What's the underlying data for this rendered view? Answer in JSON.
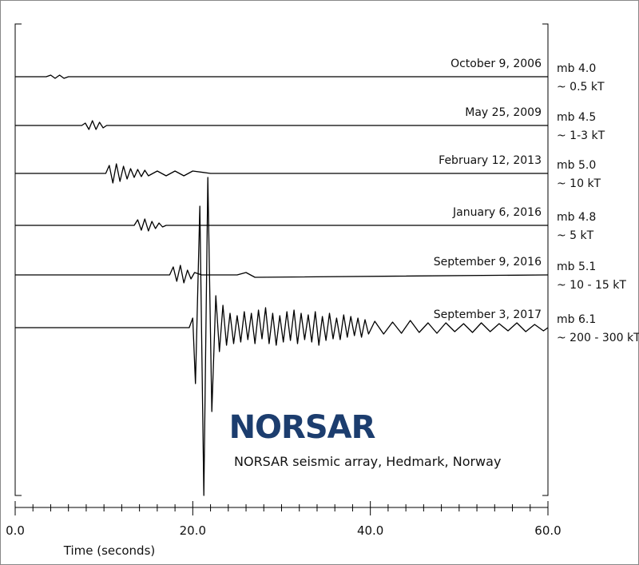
{
  "chart_data": {
    "type": "seismogram",
    "xlabel": "Time (seconds)",
    "xlim": [
      0,
      60
    ],
    "xticks": [
      {
        "value": 0,
        "label": "0.0"
      },
      {
        "value": 20,
        "label": "20.0"
      },
      {
        "value": 40,
        "label": "40.0"
      },
      {
        "value": 60,
        "label": "60.0"
      }
    ],
    "minor_xticks": [
      2,
      4,
      6,
      8,
      10,
      12,
      14,
      16,
      18,
      22,
      24,
      26,
      28,
      30,
      32,
      34,
      36,
      38,
      42,
      44,
      46,
      48,
      50,
      52,
      54,
      56,
      58
    ],
    "logo": "NORSAR",
    "caption": "NORSAR seismic array, Hedmark, Norway",
    "series": [
      {
        "name": "October 9, 2006",
        "magnitude": "mb 4.0",
        "yield": "~ 0.5 kT",
        "color": "#000000",
        "x": [
          0,
          3.5,
          4.0,
          4.5,
          5.0,
          5.5,
          6.0,
          10,
          60
        ],
        "values": [
          0,
          0,
          2,
          -2,
          2,
          -2,
          0,
          0,
          0
        ]
      },
      {
        "name": "May 25, 2009",
        "magnitude": "mb 4.5",
        "yield": "~ 1-3 kT",
        "color": "#000000",
        "x": [
          0,
          7.5,
          7.9,
          8.3,
          8.7,
          9.1,
          9.5,
          9.9,
          10.3,
          60
        ],
        "values": [
          0,
          0,
          3,
          -5,
          6,
          -5,
          4,
          -3,
          0,
          0
        ]
      },
      {
        "name": "February 12, 2013",
        "magnitude": "mb 5.0",
        "yield": "~ 10 kT",
        "color": "#000000",
        "x": [
          0,
          10.2,
          10.6,
          11.0,
          11.4,
          11.8,
          12.2,
          12.6,
          13.0,
          13.4,
          13.8,
          14.2,
          14.6,
          15.0,
          16,
          17,
          18,
          19,
          20,
          22,
          60
        ],
        "values": [
          0,
          0,
          10,
          -12,
          12,
          -10,
          9,
          -7,
          6,
          -5,
          5,
          -4,
          4,
          -3,
          3,
          -3,
          3,
          -3,
          3,
          0,
          0
        ]
      },
      {
        "name": "January 6, 2016",
        "magnitude": "mb 4.8",
        "yield": "~ 5 kT",
        "color": "#000000",
        "x": [
          0,
          13.4,
          13.8,
          14.2,
          14.6,
          15.0,
          15.4,
          15.8,
          16.2,
          16.6,
          17,
          60
        ],
        "values": [
          0,
          0,
          7,
          -6,
          8,
          -7,
          5,
          -4,
          3,
          -2,
          0,
          0
        ]
      },
      {
        "name": "September 9, 2016",
        "magnitude": "mb 5.1",
        "yield": "~ 10 - 15 kT",
        "color": "#000000",
        "x": [
          0,
          17.4,
          17.8,
          18.2,
          18.6,
          19.0,
          19.4,
          19.8,
          20.2,
          21,
          25,
          26,
          27,
          60
        ],
        "values": [
          0,
          0,
          10,
          -8,
          12,
          -10,
          6,
          -5,
          3,
          0,
          0,
          3,
          -3,
          0
        ]
      },
      {
        "name": "September 3, 2017",
        "magnitude": "mb 6.1",
        "yield": "~ 200 - 300 kT",
        "color": "#000000",
        "x": [
          0,
          19.6,
          20.0,
          20.3,
          20.8,
          21.25,
          21.7,
          22.15,
          22.6,
          23.0,
          23.4,
          23.8,
          24.2,
          24.6,
          25.0,
          25.4,
          25.8,
          26.2,
          26.6,
          27.0,
          27.4,
          27.8,
          28.2,
          28.6,
          29.0,
          29.4,
          29.8,
          30.2,
          30.6,
          31.0,
          31.4,
          31.8,
          32.2,
          32.6,
          33.0,
          33.4,
          33.8,
          34.2,
          34.6,
          35.0,
          35.4,
          35.8,
          36.2,
          36.6,
          37.0,
          37.4,
          37.8,
          38.2,
          38.6,
          39.0,
          39.4,
          39.8,
          40.5,
          41.5,
          42.5,
          43.5,
          44.5,
          45.5,
          46.5,
          47.5,
          48.5,
          49.5,
          50.5,
          51.5,
          52.5,
          53.5,
          54.5,
          55.5,
          56.5,
          57.5,
          58.5,
          59.5,
          60
        ],
        "values": [
          0,
          0,
          12,
          -70,
          152,
          -210,
          188,
          -105,
          40,
          -30,
          28,
          -22,
          18,
          -20,
          15,
          -18,
          20,
          -15,
          18,
          -20,
          22,
          -14,
          25,
          -20,
          18,
          -22,
          15,
          -18,
          20,
          -16,
          22,
          -20,
          18,
          -15,
          16,
          -18,
          20,
          -22,
          14,
          -16,
          18,
          -14,
          12,
          -15,
          16,
          -12,
          14,
          -10,
          12,
          -12,
          10,
          -8,
          8,
          -8,
          7,
          -7,
          9,
          -6,
          6,
          -7,
          6,
          -5,
          5,
          -6,
          6,
          -5,
          5,
          -4,
          6,
          -5,
          4,
          -4,
          0
        ]
      }
    ]
  }
}
